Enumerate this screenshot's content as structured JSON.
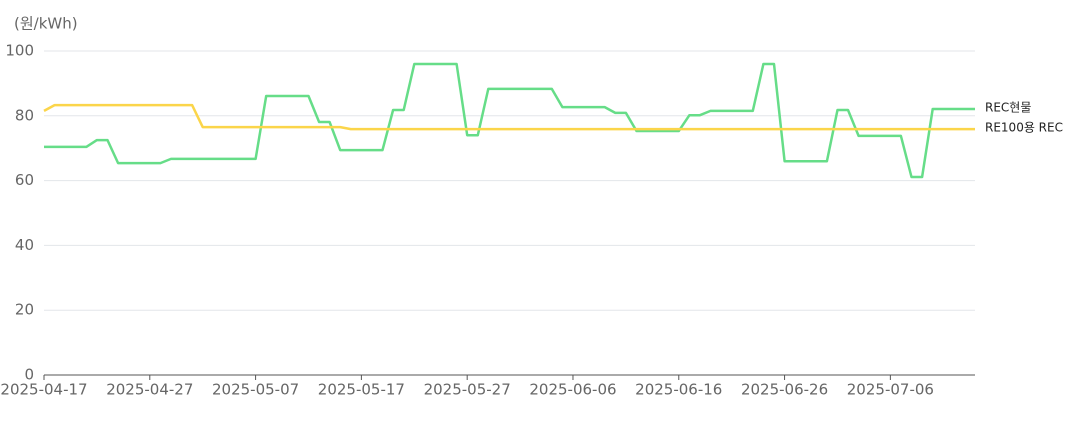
{
  "chart_data": {
    "type": "line",
    "y_label": "(원/kWh)",
    "x": [
      "2025-04-17",
      "2025-04-18",
      "2025-04-19",
      "2025-04-20",
      "2025-04-21",
      "2025-04-22",
      "2025-04-23",
      "2025-04-24",
      "2025-04-25",
      "2025-04-26",
      "2025-04-27",
      "2025-04-28",
      "2025-04-29",
      "2025-04-30",
      "2025-05-01",
      "2025-05-02",
      "2025-05-03",
      "2025-05-04",
      "2025-05-05",
      "2025-05-06",
      "2025-05-07",
      "2025-05-08",
      "2025-05-09",
      "2025-05-10",
      "2025-05-11",
      "2025-05-12",
      "2025-05-13",
      "2025-05-14",
      "2025-05-15",
      "2025-05-16",
      "2025-05-17",
      "2025-05-18",
      "2025-05-19",
      "2025-05-20",
      "2025-05-21",
      "2025-05-22",
      "2025-05-23",
      "2025-05-24",
      "2025-05-25",
      "2025-05-26",
      "2025-05-27",
      "2025-05-28",
      "2025-05-29",
      "2025-05-30",
      "2025-05-31",
      "2025-06-01",
      "2025-06-02",
      "2025-06-03",
      "2025-06-04",
      "2025-06-05",
      "2025-06-06",
      "2025-06-07",
      "2025-06-08",
      "2025-06-09",
      "2025-06-10",
      "2025-06-11",
      "2025-06-12",
      "2025-06-13",
      "2025-06-14",
      "2025-06-15",
      "2025-06-16",
      "2025-06-17",
      "2025-06-18",
      "2025-06-19",
      "2025-06-20",
      "2025-06-21",
      "2025-06-22",
      "2025-06-23",
      "2025-06-24",
      "2025-06-25",
      "2025-06-26",
      "2025-06-27",
      "2025-06-28",
      "2025-06-29",
      "2025-06-30",
      "2025-07-01",
      "2025-07-02",
      "2025-07-03",
      "2025-07-04",
      "2025-07-05",
      "2025-07-06",
      "2025-07-07",
      "2025-07-08",
      "2025-07-09",
      "2025-07-10",
      "2025-07-11",
      "2025-07-12",
      "2025-07-13",
      "2025-07-14"
    ],
    "series": [
      {
        "name": "REC현물",
        "color": "#66dd88",
        "values": [
          70.4,
          70.4,
          70.4,
          70.4,
          70.4,
          72.5,
          72.5,
          65.4,
          65.4,
          65.4,
          65.4,
          65.4,
          66.7,
          66.7,
          66.7,
          66.7,
          66.7,
          66.7,
          66.7,
          66.7,
          66.7,
          86.1,
          86.1,
          86.1,
          86.1,
          86.1,
          78.1,
          78.1,
          69.4,
          69.4,
          69.4,
          69.4,
          69.4,
          81.8,
          81.8,
          96,
          96,
          96,
          96,
          96,
          74,
          74,
          88.3,
          88.3,
          88.3,
          88.3,
          88.3,
          88.3,
          88.3,
          82.7,
          82.7,
          82.7,
          82.7,
          82.7,
          80.9,
          80.9,
          75.3,
          75.3,
          75.3,
          75.3,
          75.3,
          80.2,
          80.2,
          81.5,
          81.5,
          81.5,
          81.5,
          81.5,
          96,
          96,
          66,
          66,
          66,
          66,
          66,
          81.8,
          81.8,
          73.8,
          73.8,
          73.8,
          73.8,
          73.8,
          61.1,
          61.1,
          82.1,
          82.1,
          82.1,
          82.1,
          82.1
        ]
      },
      {
        "name": "RE100용 REC",
        "color": "#fbd54a",
        "values": [
          81.5,
          83.3,
          83.3,
          83.3,
          83.3,
          83.3,
          83.3,
          83.3,
          83.3,
          83.3,
          83.3,
          83.3,
          83.3,
          83.3,
          83.3,
          76.5,
          76.5,
          76.5,
          76.5,
          76.5,
          76.5,
          76.5,
          76.5,
          76.5,
          76.5,
          76.5,
          76.5,
          76.5,
          76.5,
          75.9,
          75.9,
          75.9,
          75.9,
          75.9,
          75.9,
          75.9,
          75.9,
          75.9,
          75.9,
          75.9,
          75.9,
          75.9,
          75.9,
          75.9,
          75.9,
          75.9,
          75.9,
          75.9,
          75.9,
          75.9,
          75.9,
          75.9,
          75.9,
          75.9,
          75.9,
          75.9,
          75.9,
          75.9,
          75.9,
          75.9,
          75.9,
          75.9,
          75.9,
          75.9,
          75.9,
          75.9,
          75.9,
          75.9,
          75.9,
          75.9,
          75.9,
          75.9,
          75.9,
          75.9,
          75.9,
          75.9,
          75.9,
          75.9,
          75.9,
          75.9,
          75.9,
          75.9,
          75.9,
          75.9,
          75.9,
          75.9,
          75.9,
          75.9,
          75.9
        ]
      }
    ],
    "xlim": [
      "2025-04-17",
      "2025-07-14"
    ],
    "xticks": [
      "2025-04-17",
      "2025-04-27",
      "2025-05-07",
      "2025-05-17",
      "2025-05-27",
      "2025-06-06",
      "2025-06-16",
      "2025-06-26",
      "2025-07-06"
    ],
    "ylim": [
      0,
      100
    ],
    "yticks": [
      0,
      20,
      40,
      60,
      80,
      100
    ],
    "grid": true
  }
}
